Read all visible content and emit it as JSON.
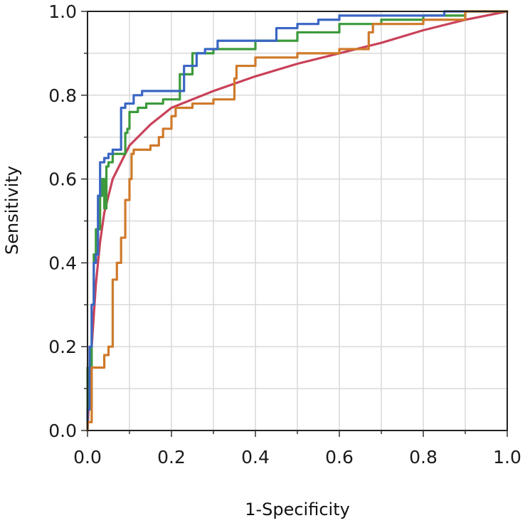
{
  "chart_data": {
    "type": "line",
    "title": "",
    "xlabel": "1-Specificity",
    "ylabel": "Sensitivity",
    "xlim": [
      0,
      1
    ],
    "ylim": [
      0,
      1
    ],
    "x_ticks": [
      "0.0",
      "0.2",
      "0.4",
      "0.6",
      "0.8",
      "1.0"
    ],
    "y_ticks": [
      "0.0",
      "0.2",
      "0.4",
      "0.6",
      "0.8",
      "1.0"
    ],
    "grid": true,
    "legend": "none",
    "series": [
      {
        "color": "#c9425a",
        "style": "smooth",
        "points": [
          [
            0,
            0
          ],
          [
            0.005,
            0.1
          ],
          [
            0.01,
            0.2
          ],
          [
            0.02,
            0.35
          ],
          [
            0.03,
            0.45
          ],
          [
            0.04,
            0.52
          ],
          [
            0.06,
            0.6
          ],
          [
            0.1,
            0.68
          ],
          [
            0.15,
            0.73
          ],
          [
            0.2,
            0.77
          ],
          [
            0.3,
            0.81
          ],
          [
            0.4,
            0.845
          ],
          [
            0.5,
            0.875
          ],
          [
            0.6,
            0.9
          ],
          [
            0.7,
            0.925
          ],
          [
            0.8,
            0.955
          ],
          [
            0.9,
            0.98
          ],
          [
            1,
            1
          ]
        ]
      },
      {
        "color": "#3c9a3c",
        "style": "step",
        "points": [
          [
            0,
            0
          ],
          [
            0.01,
            0.15
          ],
          [
            0.015,
            0.3
          ],
          [
            0.02,
            0.42
          ],
          [
            0.03,
            0.48
          ],
          [
            0.035,
            0.56
          ],
          [
            0.04,
            0.6
          ],
          [
            0.045,
            0.53
          ],
          [
            0.05,
            0.63
          ],
          [
            0.06,
            0.64
          ],
          [
            0.09,
            0.66
          ],
          [
            0.095,
            0.71
          ],
          [
            0.1,
            0.72
          ],
          [
            0.12,
            0.76
          ],
          [
            0.14,
            0.77
          ],
          [
            0.18,
            0.78
          ],
          [
            0.22,
            0.79
          ],
          [
            0.25,
            0.85
          ],
          [
            0.3,
            0.9
          ],
          [
            0.4,
            0.91
          ],
          [
            0.5,
            0.93
          ],
          [
            0.6,
            0.95
          ],
          [
            0.7,
            0.97
          ],
          [
            0.8,
            0.98
          ],
          [
            0.9,
            0.99
          ],
          [
            1,
            1
          ]
        ]
      },
      {
        "color": "#3a66c4",
        "style": "step",
        "points": [
          [
            0,
            0
          ],
          [
            0.005,
            0.05
          ],
          [
            0.01,
            0.2
          ],
          [
            0.015,
            0.3
          ],
          [
            0.02,
            0.4
          ],
          [
            0.025,
            0.42
          ],
          [
            0.03,
            0.56
          ],
          [
            0.04,
            0.64
          ],
          [
            0.05,
            0.65
          ],
          [
            0.06,
            0.66
          ],
          [
            0.08,
            0.67
          ],
          [
            0.09,
            0.77
          ],
          [
            0.11,
            0.78
          ],
          [
            0.13,
            0.8
          ],
          [
            0.15,
            0.81
          ],
          [
            0.2,
            0.81
          ],
          [
            0.23,
            0.81
          ],
          [
            0.26,
            0.87
          ],
          [
            0.28,
            0.9
          ],
          [
            0.31,
            0.91
          ],
          [
            0.45,
            0.93
          ],
          [
            0.5,
            0.96
          ],
          [
            0.55,
            0.97
          ],
          [
            0.6,
            0.98
          ],
          [
            0.65,
            0.99
          ],
          [
            0.85,
            0.99
          ],
          [
            1,
            1
          ]
        ]
      },
      {
        "color": "#cf7a2a",
        "style": "step",
        "points": [
          [
            0,
            0
          ],
          [
            0.01,
            0.02
          ],
          [
            0.02,
            0.15
          ],
          [
            0.03,
            0.15
          ],
          [
            0.04,
            0.15
          ],
          [
            0.05,
            0.18
          ],
          [
            0.06,
            0.2
          ],
          [
            0.07,
            0.36
          ],
          [
            0.08,
            0.4
          ],
          [
            0.09,
            0.46
          ],
          [
            0.1,
            0.55
          ],
          [
            0.105,
            0.6
          ],
          [
            0.11,
            0.66
          ],
          [
            0.15,
            0.67
          ],
          [
            0.17,
            0.68
          ],
          [
            0.18,
            0.7
          ],
          [
            0.2,
            0.72
          ],
          [
            0.21,
            0.75
          ],
          [
            0.25,
            0.77
          ],
          [
            0.3,
            0.78
          ],
          [
            0.35,
            0.79
          ],
          [
            0.355,
            0.84
          ],
          [
            0.4,
            0.87
          ],
          [
            0.5,
            0.89
          ],
          [
            0.6,
            0.9
          ],
          [
            0.67,
            0.91
          ],
          [
            0.68,
            0.95
          ],
          [
            0.8,
            0.97
          ],
          [
            0.9,
            0.98
          ],
          [
            1,
            1
          ]
        ]
      }
    ]
  }
}
